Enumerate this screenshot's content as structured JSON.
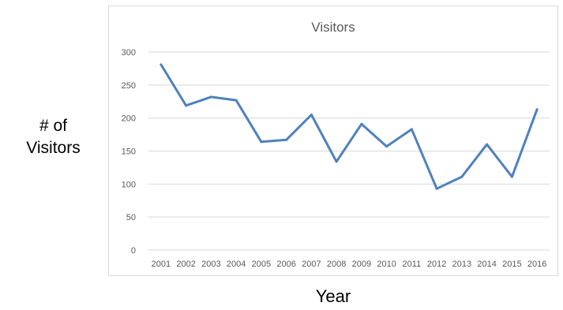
{
  "chart_data": {
    "type": "line",
    "title": "Visitors",
    "xlabel": "Year",
    "ylabel_lines": [
      "# of",
      "Visitors"
    ],
    "x": [
      "2001",
      "2002",
      "2003",
      "2004",
      "2005",
      "2006",
      "2007",
      "2008",
      "2009",
      "2010",
      "2011",
      "2012",
      "2013",
      "2014",
      "2015",
      "2016"
    ],
    "series": [
      {
        "values": [
          281,
          219,
          232,
          227,
          164,
          167,
          205,
          134,
          191,
          157,
          183,
          93,
          111,
          160,
          111,
          213
        ]
      }
    ],
    "yticks": [
      "0",
      "50",
      "100",
      "150",
      "200",
      "250",
      "300"
    ],
    "ylim": [
      0,
      300
    ],
    "grid": true,
    "legend": "none",
    "colors": {
      "line": "#4f81bd",
      "grid": "#d9d9d9",
      "tick_text": "#595959"
    }
  }
}
